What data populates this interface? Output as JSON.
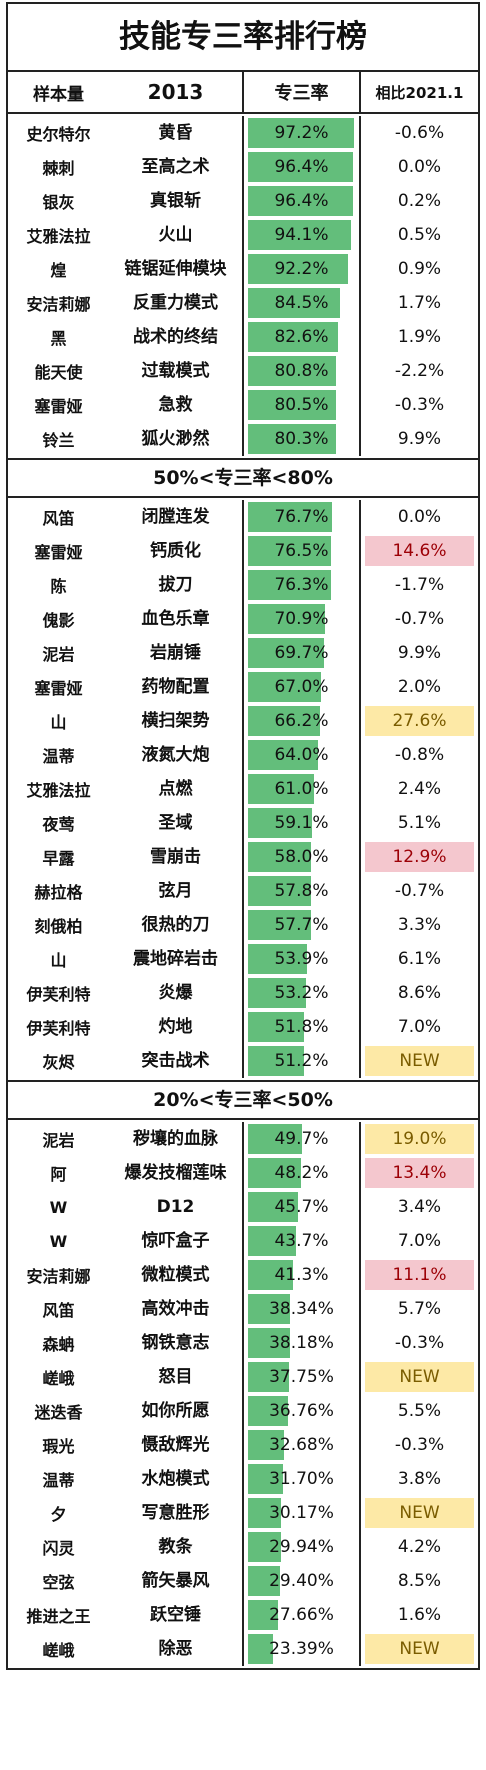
{
  "title": "技能专三率排行榜",
  "header": {
    "sample": "样本量",
    "year": "2013",
    "rate": "专三率",
    "compare": "相比2021.1"
  },
  "colors": {
    "bar": "#63be7b",
    "highlight_pink": "#f4c7ce",
    "highlight_gold": "#fde9a6"
  },
  "sections": [
    {
      "label": "",
      "rows": [
        {
          "op": "史尔特尔",
          "skill": "黄昏",
          "rate": "97.2%",
          "rate_value": 97.2,
          "cmp": "-0.6%",
          "hl": ""
        },
        {
          "op": "棘刺",
          "skill": "至高之术",
          "rate": "96.4%",
          "rate_value": 96.4,
          "cmp": "0.0%",
          "hl": ""
        },
        {
          "op": "银灰",
          "skill": "真银斩",
          "rate": "96.4%",
          "rate_value": 96.4,
          "cmp": "0.2%",
          "hl": ""
        },
        {
          "op": "艾雅法拉",
          "skill": "火山",
          "rate": "94.1%",
          "rate_value": 94.1,
          "cmp": "0.5%",
          "hl": ""
        },
        {
          "op": "煌",
          "skill": "链锯延伸模块",
          "rate": "92.2%",
          "rate_value": 92.2,
          "cmp": "0.9%",
          "hl": ""
        },
        {
          "op": "安洁莉娜",
          "skill": "反重力模式",
          "rate": "84.5%",
          "rate_value": 84.5,
          "cmp": "1.7%",
          "hl": ""
        },
        {
          "op": "黑",
          "skill": "战术的终结",
          "rate": "82.6%",
          "rate_value": 82.6,
          "cmp": "1.9%",
          "hl": ""
        },
        {
          "op": "能天使",
          "skill": "过载模式",
          "rate": "80.8%",
          "rate_value": 80.8,
          "cmp": "-2.2%",
          "hl": ""
        },
        {
          "op": "塞雷娅",
          "skill": "急救",
          "rate": "80.5%",
          "rate_value": 80.5,
          "cmp": "-0.3%",
          "hl": ""
        },
        {
          "op": "铃兰",
          "skill": "狐火渺然",
          "rate": "80.3%",
          "rate_value": 80.3,
          "cmp": "9.9%",
          "hl": ""
        }
      ]
    },
    {
      "label": "50%<专三率<80%",
      "rows": [
        {
          "op": "风笛",
          "skill": "闭膛连发",
          "rate": "76.7%",
          "rate_value": 76.7,
          "cmp": "0.0%",
          "hl": ""
        },
        {
          "op": "塞雷娅",
          "skill": "钙质化",
          "rate": "76.5%",
          "rate_value": 76.5,
          "cmp": "14.6%",
          "hl": "pink"
        },
        {
          "op": "陈",
          "skill": "拔刀",
          "rate": "76.3%",
          "rate_value": 76.3,
          "cmp": "-1.7%",
          "hl": ""
        },
        {
          "op": "傀影",
          "skill": "血色乐章",
          "rate": "70.9%",
          "rate_value": 70.9,
          "cmp": "-0.7%",
          "hl": ""
        },
        {
          "op": "泥岩",
          "skill": "岩崩锤",
          "rate": "69.7%",
          "rate_value": 69.7,
          "cmp": "9.9%",
          "hl": ""
        },
        {
          "op": "塞雷娅",
          "skill": "药物配置",
          "rate": "67.0%",
          "rate_value": 67.0,
          "cmp": "2.0%",
          "hl": ""
        },
        {
          "op": "山",
          "skill": "横扫架势",
          "rate": "66.2%",
          "rate_value": 66.2,
          "cmp": "27.6%",
          "hl": "gold"
        },
        {
          "op": "温蒂",
          "skill": "液氮大炮",
          "rate": "64.0%",
          "rate_value": 64.0,
          "cmp": "-0.8%",
          "hl": ""
        },
        {
          "op": "艾雅法拉",
          "skill": "点燃",
          "rate": "61.0%",
          "rate_value": 61.0,
          "cmp": "2.4%",
          "hl": ""
        },
        {
          "op": "夜莺",
          "skill": "圣域",
          "rate": "59.1%",
          "rate_value": 59.1,
          "cmp": "5.1%",
          "hl": ""
        },
        {
          "op": "早露",
          "skill": "雪崩击",
          "rate": "58.0%",
          "rate_value": 58.0,
          "cmp": "12.9%",
          "hl": "pink"
        },
        {
          "op": "赫拉格",
          "skill": "弦月",
          "rate": "57.8%",
          "rate_value": 57.8,
          "cmp": "-0.7%",
          "hl": ""
        },
        {
          "op": "刻俄柏",
          "skill": "很热的刀",
          "rate": "57.7%",
          "rate_value": 57.7,
          "cmp": "3.3%",
          "hl": ""
        },
        {
          "op": "山",
          "skill": "震地碎岩击",
          "rate": "53.9%",
          "rate_value": 53.9,
          "cmp": "6.1%",
          "hl": ""
        },
        {
          "op": "伊芙利特",
          "skill": "炎爆",
          "rate": "53.2%",
          "rate_value": 53.2,
          "cmp": "8.6%",
          "hl": ""
        },
        {
          "op": "伊芙利特",
          "skill": "灼地",
          "rate": "51.8%",
          "rate_value": 51.8,
          "cmp": "7.0%",
          "hl": ""
        },
        {
          "op": "灰烬",
          "skill": "突击战术",
          "rate": "51.2%",
          "rate_value": 51.2,
          "cmp": "NEW",
          "hl": "gold"
        }
      ]
    },
    {
      "label": "20%<专三率<50%",
      "rows": [
        {
          "op": "泥岩",
          "skill": "秽壤的血脉",
          "rate": "49.7%",
          "rate_value": 49.7,
          "cmp": "19.0%",
          "hl": "gold"
        },
        {
          "op": "阿",
          "skill": "爆发技榴莲味",
          "rate": "48.2%",
          "rate_value": 48.2,
          "cmp": "13.4%",
          "hl": "pink"
        },
        {
          "op": "W",
          "skill": "D12",
          "rate": "45.7%",
          "rate_value": 45.7,
          "cmp": "3.4%",
          "hl": ""
        },
        {
          "op": "W",
          "skill": "惊吓盒子",
          "rate": "43.7%",
          "rate_value": 43.7,
          "cmp": "7.0%",
          "hl": ""
        },
        {
          "op": "安洁莉娜",
          "skill": "微粒模式",
          "rate": "41.3%",
          "rate_value": 41.3,
          "cmp": "11.1%",
          "hl": "pink"
        },
        {
          "op": "风笛",
          "skill": "高效冲击",
          "rate": "38.34%",
          "rate_value": 38.34,
          "cmp": "5.7%",
          "hl": ""
        },
        {
          "op": "森蚺",
          "skill": "钢铁意志",
          "rate": "38.18%",
          "rate_value": 38.18,
          "cmp": "-0.3%",
          "hl": ""
        },
        {
          "op": "嵯峨",
          "skill": "怒目",
          "rate": "37.75%",
          "rate_value": 37.75,
          "cmp": "NEW",
          "hl": "gold"
        },
        {
          "op": "迷迭香",
          "skill": "如你所愿",
          "rate": "36.76%",
          "rate_value": 36.76,
          "cmp": "5.5%",
          "hl": ""
        },
        {
          "op": "瑕光",
          "skill": "慑敌辉光",
          "rate": "32.68%",
          "rate_value": 32.68,
          "cmp": "-0.3%",
          "hl": ""
        },
        {
          "op": "温蒂",
          "skill": "水炮模式",
          "rate": "31.70%",
          "rate_value": 31.7,
          "cmp": "3.8%",
          "hl": ""
        },
        {
          "op": "夕",
          "skill": "写意胜形",
          "rate": "30.17%",
          "rate_value": 30.17,
          "cmp": "NEW",
          "hl": "gold"
        },
        {
          "op": "闪灵",
          "skill": "教条",
          "rate": "29.94%",
          "rate_value": 29.94,
          "cmp": "4.2%",
          "hl": ""
        },
        {
          "op": "空弦",
          "skill": "箭矢暴风",
          "rate": "29.40%",
          "rate_value": 29.4,
          "cmp": "8.5%",
          "hl": ""
        },
        {
          "op": "推进之王",
          "skill": "跃空锤",
          "rate": "27.66%",
          "rate_value": 27.66,
          "cmp": "1.6%",
          "hl": ""
        },
        {
          "op": "嵯峨",
          "skill": "除恶",
          "rate": "23.39%",
          "rate_value": 23.39,
          "cmp": "NEW",
          "hl": "gold"
        }
      ]
    }
  ]
}
